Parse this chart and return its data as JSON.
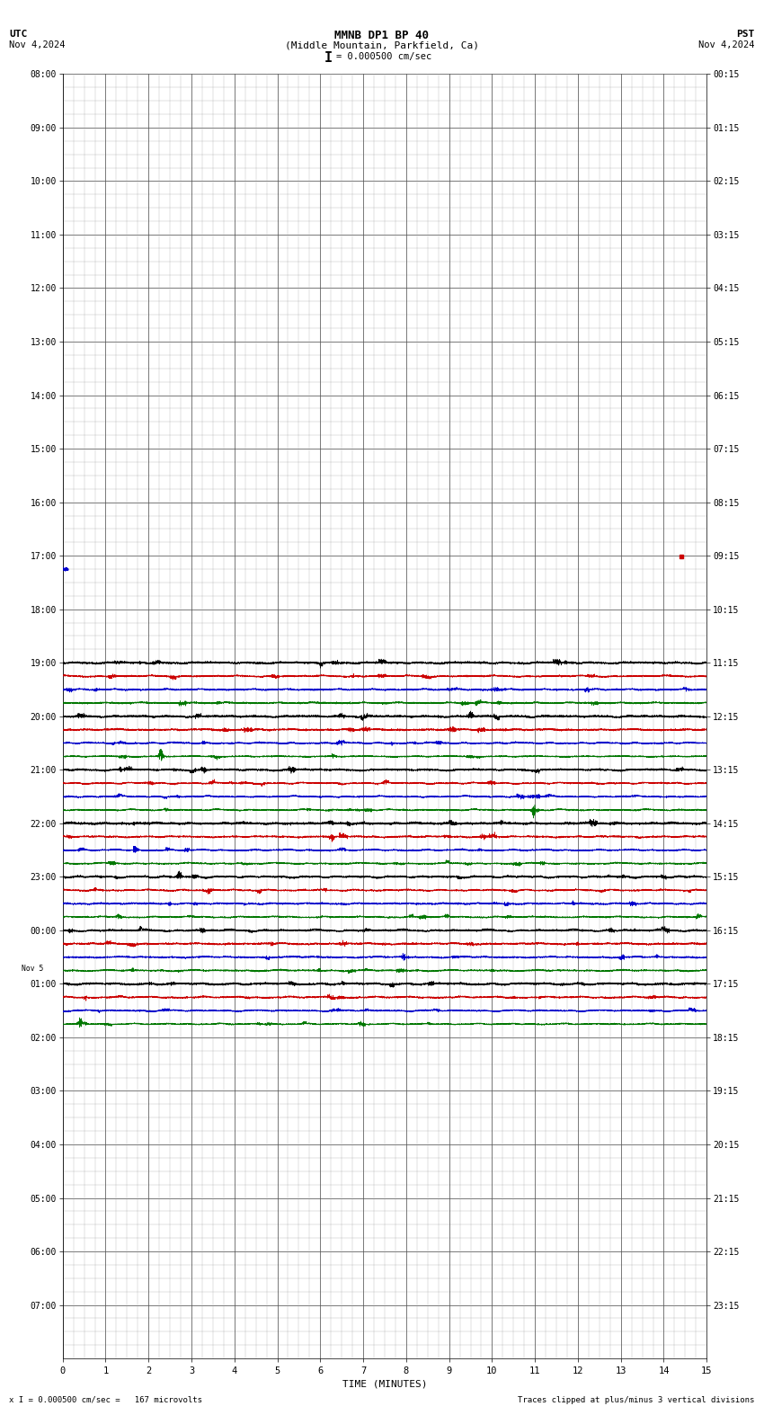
{
  "title_line1": "MMNB DP1 BP 40",
  "title_line2": "(Middle Mountain, Parkfield, Ca)",
  "scale_label": "I = 0.000500 cm/sec",
  "left_label": "UTC",
  "right_label": "PST",
  "left_date": "Nov 4,2024",
  "right_date": "Nov 4,2024",
  "xlabel": "TIME (MINUTES)",
  "footer_left": "x I = 0.000500 cm/sec =   167 microvolts",
  "footer_right": "Traces clipped at plus/minus 3 vertical divisions",
  "bg_color": "#ffffff",
  "grid_major_color": "#555555",
  "grid_minor_color": "#aaaaaa",
  "trace_colors": [
    "#000000",
    "#cc0000",
    "#0000cc",
    "#007700"
  ],
  "xmin": 0,
  "xmax": 15,
  "utc_labels": [
    "08:00",
    "09:00",
    "10:00",
    "11:00",
    "12:00",
    "13:00",
    "14:00",
    "15:00",
    "16:00",
    "17:00",
    "18:00",
    "19:00",
    "20:00",
    "21:00",
    "22:00",
    "23:00",
    "00:00",
    "01:00",
    "02:00",
    "03:00",
    "04:00",
    "05:00",
    "06:00",
    "07:00"
  ],
  "pst_labels": [
    "00:15",
    "01:15",
    "02:15",
    "03:15",
    "04:15",
    "05:15",
    "06:15",
    "07:15",
    "08:15",
    "09:15",
    "10:15",
    "11:15",
    "12:15",
    "13:15",
    "14:15",
    "15:15",
    "16:15",
    "17:15",
    "18:15",
    "19:15",
    "20:15",
    "21:15",
    "22:15",
    "23:15"
  ],
  "active_rows": [
    11,
    12,
    13,
    14,
    15,
    16,
    17
  ],
  "small_signal_row": 9,
  "seed": 42,
  "trace_amp_black": 0.07,
  "trace_amp_red": 0.06,
  "trace_amp_blue": 0.055,
  "trace_amp_green": 0.055
}
